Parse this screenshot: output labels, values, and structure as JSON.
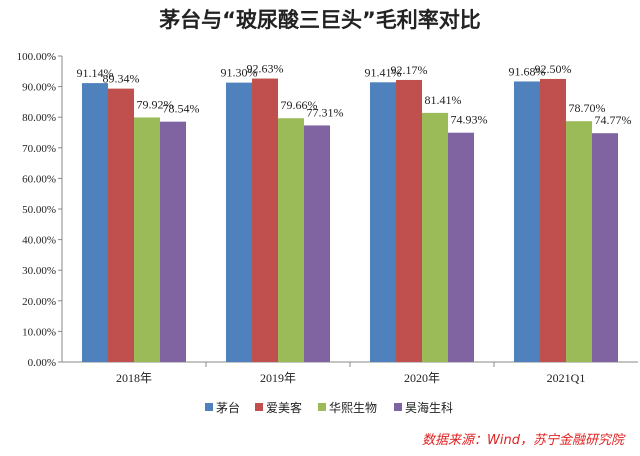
{
  "chart_data": {
    "type": "bar",
    "title": "茅台与“玻尿酸三巨头”毛利率对比",
    "categories": [
      "2018年",
      "2019年",
      "2020年",
      "2021Q1"
    ],
    "series": [
      {
        "name": "茅台",
        "color": "#4f81bd",
        "values": [
          91.14,
          91.3,
          91.41,
          91.68
        ]
      },
      {
        "name": "爱美客",
        "color": "#c0504d",
        "values": [
          89.34,
          92.63,
          92.17,
          92.5
        ]
      },
      {
        "name": "华熙生物",
        "color": "#9bbb59",
        "values": [
          79.92,
          79.66,
          81.41,
          78.7
        ]
      },
      {
        "name": "昊海生科",
        "color": "#8064a2",
        "values": [
          78.54,
          77.31,
          74.93,
          74.77
        ]
      }
    ],
    "ylim": [
      0,
      100
    ],
    "yticks": [
      "0.00%",
      "10.00%",
      "20.00%",
      "30.00%",
      "40.00%",
      "50.00%",
      "60.00%",
      "70.00%",
      "80.00%",
      "90.00%",
      "100.00%"
    ],
    "data_labels": [
      [
        "91.14%",
        "91.30%",
        "91.41%",
        "91.68%"
      ],
      [
        "89.34%",
        "92.63%",
        "92.17%",
        "92.50%"
      ],
      [
        "79.92%",
        "79.66%",
        "81.41%",
        "78.70%"
      ],
      [
        "78.54%",
        "77.31%",
        "74.93%",
        "74.77%"
      ]
    ],
    "legend_position": "bottom",
    "grid": false
  },
  "source": "数据来源：Wind，苏宁金融研究院"
}
